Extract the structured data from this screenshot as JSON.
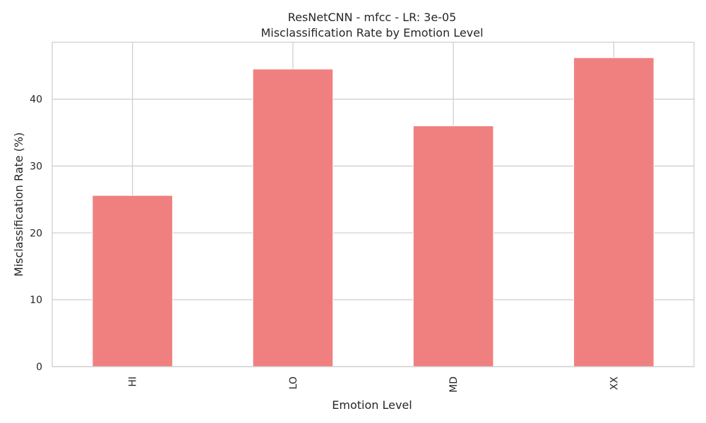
{
  "chart_data": {
    "type": "bar",
    "title_line1": "ResNetCNN - mfcc - LR: 3e-05",
    "title_line2": "Misclassification Rate by Emotion Level",
    "xlabel": "Emotion Level",
    "ylabel": "Misclassification Rate (%)",
    "categories": [
      "HI",
      "LO",
      "MD",
      "XX"
    ],
    "values": [
      25.6,
      44.5,
      36.0,
      46.2
    ],
    "yticks": [
      0,
      10,
      20,
      30,
      40
    ],
    "ylim": [
      0,
      48.5
    ],
    "bar_color": "#f08080",
    "grid": true,
    "legend": "none"
  }
}
